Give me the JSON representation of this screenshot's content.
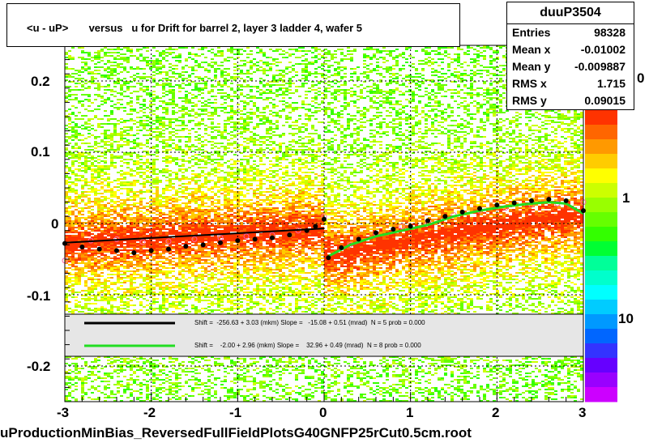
{
  "title": "<u - uP>       versus   u for Drift for barrel 2, layer 3 ladder 4, wafer 5",
  "xlabel": "uProductionMinBias_ReversedFullFieldPlotsG40GNFP25rCut0.5cm.root",
  "stats": {
    "name": "duuP3504",
    "rows": [
      {
        "key": "Entries",
        "value": "98328"
      },
      {
        "key": "Mean x",
        "value": "-0.01002"
      },
      {
        "key": "Mean y",
        "value": "-0.009887"
      },
      {
        "key": "RMS x",
        "value": "1.715"
      },
      {
        "key": "RMS y",
        "value": "0.09015"
      }
    ]
  },
  "colors": {
    "fit_black": "#000000",
    "fit_green": "#22dd22",
    "profile_black": "#000000",
    "profile_pink": "#ff66aa"
  },
  "chart_data": {
    "type": "heatmap",
    "xlim": [
      -3,
      3
    ],
    "ylim": [
      -0.25,
      0.25
    ],
    "x_ticks": [
      "-3",
      "-2",
      "-1",
      "0",
      "1",
      "2",
      "3"
    ],
    "y_ticks": [
      "0.2",
      "0.1",
      "0",
      "-0.1",
      "-0.2"
    ],
    "z_ticks": [
      "10",
      "1"
    ],
    "z_label_partial": "0",
    "grid": true,
    "legend": [
      {
        "color": "black",
        "text": "Shift =  -256.63 + 3.03 (mkm) Slope =   -15.08 + 0.51 (mrad)  N = 5 prob = 0.000"
      },
      {
        "color": "green",
        "text": "Shift =    -2.00 + 2.96 (mkm) Slope =    32.96 + 0.49 (mrad)  N = 8 prob = 0.000"
      }
    ],
    "profile_black_left": {
      "x": [
        -3.0,
        -2.8,
        -2.6,
        -2.4,
        -2.2,
        -2.0,
        -1.8,
        -1.6,
        -1.4,
        -1.2,
        -1.0,
        -0.8,
        -0.6,
        -0.4,
        -0.2,
        -0.1,
        0.0
      ],
      "y": [
        -0.028,
        -0.033,
        -0.036,
        -0.038,
        -0.041,
        -0.038,
        -0.036,
        -0.032,
        -0.03,
        -0.027,
        -0.024,
        -0.022,
        -0.02,
        -0.016,
        -0.01,
        -0.004,
        0.006
      ]
    },
    "profile_black_right": {
      "x": [
        0.05,
        0.2,
        0.4,
        0.6,
        0.8,
        1.0,
        1.2,
        1.4,
        1.6,
        1.8,
        2.0,
        2.2,
        2.4,
        2.6,
        2.8,
        3.0
      ],
      "y": [
        -0.048,
        -0.034,
        -0.022,
        -0.013,
        -0.008,
        -0.004,
        0.004,
        0.01,
        0.016,
        0.021,
        0.026,
        0.029,
        0.032,
        0.034,
        0.032,
        0.018
      ]
    },
    "profile_pink": {
      "x": [
        -3.0,
        -2.7,
        -2.4,
        -2.1,
        -1.8,
        -1.5,
        -1.2,
        -0.9,
        -0.6,
        -0.3,
        0.0,
        0.3,
        0.6,
        0.9,
        1.2,
        1.5,
        1.8,
        2.1,
        2.4,
        2.7,
        3.0
      ],
      "y": [
        -0.052,
        -0.024,
        -0.022,
        -0.026,
        -0.025,
        -0.022,
        -0.02,
        -0.018,
        -0.016,
        -0.01,
        0.01,
        -0.03,
        -0.014,
        -0.004,
        0.002,
        0.012,
        0.018,
        0.022,
        0.026,
        0.028,
        0.03
      ]
    },
    "fit_black": {
      "x": [
        -3.0,
        0.0
      ],
      "y": [
        -0.027,
        -0.007
      ]
    },
    "fit_green": {
      "x": [
        0.05,
        0.3,
        0.6,
        0.9,
        1.2,
        1.5,
        1.8,
        2.1,
        2.4,
        2.6,
        2.8,
        3.0
      ],
      "y": [
        -0.046,
        -0.03,
        -0.018,
        -0.01,
        -0.002,
        0.01,
        0.018,
        0.024,
        0.028,
        0.03,
        0.028,
        0.014
      ]
    }
  }
}
